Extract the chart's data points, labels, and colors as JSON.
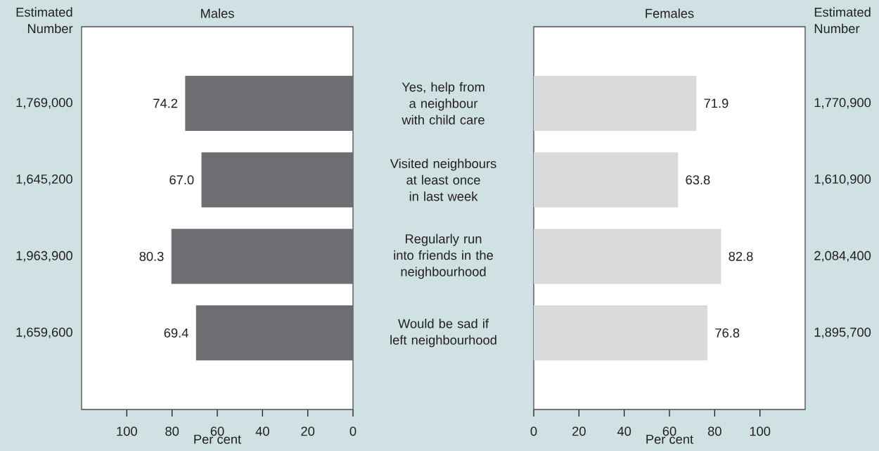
{
  "chart_data": [
    {
      "type": "bar",
      "orientation": "horizontal",
      "title": "Males",
      "xlabel": "Per cent",
      "ylabel": "Estimated Number",
      "categories": [
        "Yes, help from a neighbour with child care",
        "Visited neighbours at least once in last week",
        "Regularly run into friends in the neighbourhood",
        "Would be sad if left neighbourhood"
      ],
      "values": [
        74.2,
        67.0,
        80.3,
        69.4
      ],
      "color": "#6d6e71",
      "value_labels": [
        "74.2",
        "67.0",
        "80.3",
        "69.4"
      ],
      "xlim": [
        120,
        0
      ],
      "xticks": [
        100,
        80,
        60,
        40,
        20,
        0
      ],
      "annotations": [
        "1,769,000",
        "1,645,200",
        "1,963,900",
        "1,659,600"
      ]
    },
    {
      "type": "bar",
      "orientation": "horizontal",
      "title": "Females",
      "xlabel": "Per cent",
      "ylabel": "Estimated Number",
      "categories": [
        null,
        null,
        null,
        null
      ],
      "values": [
        71.9,
        63.8,
        82.8,
        76.8
      ],
      "color": "#d9dadc",
      "value_labels": [
        "71.9",
        "63.8",
        "82.8",
        "76.8"
      ],
      "xlim": [
        0,
        120
      ],
      "xticks": [
        0,
        20,
        40,
        60,
        80,
        100
      ],
      "annotations": [
        "1,770,900",
        "1,610,900",
        "2,084,400",
        "1,895,700"
      ]
    }
  ]
}
